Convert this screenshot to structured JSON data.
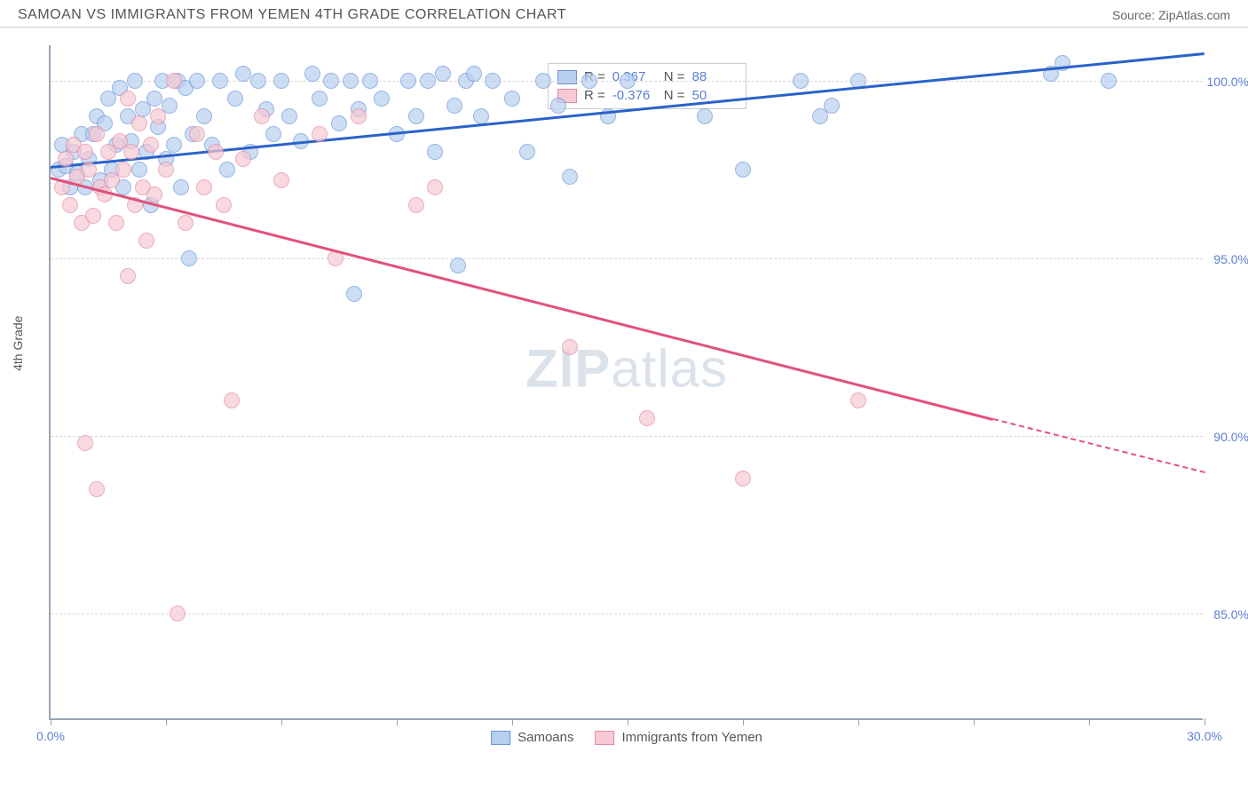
{
  "header": {
    "title": "SAMOAN VS IMMIGRANTS FROM YEMEN 4TH GRADE CORRELATION CHART",
    "source": "Source: ZipAtlas.com"
  },
  "chart": {
    "type": "scatter",
    "y_axis_title": "4th Grade",
    "xlim": [
      0,
      30
    ],
    "ylim": [
      82,
      101
    ],
    "x_ticks": [
      0,
      3,
      6,
      9,
      12,
      15,
      18,
      21,
      24,
      27,
      30
    ],
    "x_tick_labels": {
      "0": "0.0%",
      "30": "30.0%"
    },
    "y_gridlines": [
      85,
      90,
      95,
      100
    ],
    "y_labels": {
      "85": "85.0%",
      "90": "90.0%",
      "95": "95.0%",
      "100": "100.0%"
    },
    "background_color": "#ffffff",
    "grid_color": "#d8d8d8",
    "axis_color": "#9aa5b1",
    "label_color": "#5b7fd1",
    "marker_radius": 9,
    "marker_opacity": 0.7,
    "series": [
      {
        "name": "Samoans",
        "fill": "#b7cff0",
        "stroke": "#6c96d6",
        "line_color": "#2a62c9",
        "R": "0.367",
        "N": "88",
        "trend": {
          "x1": 0,
          "y1": 97.6,
          "x2": 30,
          "y2": 100.8
        },
        "points": [
          [
            0.2,
            97.5
          ],
          [
            0.3,
            98.2
          ],
          [
            0.4,
            97.6
          ],
          [
            0.5,
            97.0
          ],
          [
            0.6,
            98.0
          ],
          [
            0.7,
            97.4
          ],
          [
            0.8,
            98.5
          ],
          [
            0.9,
            97.0
          ],
          [
            1.0,
            97.8
          ],
          [
            1.1,
            98.5
          ],
          [
            1.2,
            99.0
          ],
          [
            1.3,
            97.2
          ],
          [
            1.4,
            98.8
          ],
          [
            1.5,
            99.5
          ],
          [
            1.6,
            97.5
          ],
          [
            1.7,
            98.2
          ],
          [
            1.8,
            99.8
          ],
          [
            1.9,
            97.0
          ],
          [
            2.0,
            99.0
          ],
          [
            2.1,
            98.3
          ],
          [
            2.2,
            100.0
          ],
          [
            2.3,
            97.5
          ],
          [
            2.4,
            99.2
          ],
          [
            2.5,
            98.0
          ],
          [
            2.6,
            96.5
          ],
          [
            2.7,
            99.5
          ],
          [
            2.8,
            98.7
          ],
          [
            2.9,
            100.0
          ],
          [
            3.0,
            97.8
          ],
          [
            3.1,
            99.3
          ],
          [
            3.2,
            98.2
          ],
          [
            3.3,
            100.0
          ],
          [
            3.4,
            97.0
          ],
          [
            3.5,
            99.8
          ],
          [
            3.6,
            95.0
          ],
          [
            3.7,
            98.5
          ],
          [
            3.8,
            100.0
          ],
          [
            4.0,
            99.0
          ],
          [
            4.2,
            98.2
          ],
          [
            4.4,
            100.0
          ],
          [
            4.6,
            97.5
          ],
          [
            4.8,
            99.5
          ],
          [
            5.0,
            100.2
          ],
          [
            5.2,
            98.0
          ],
          [
            5.4,
            100.0
          ],
          [
            5.6,
            99.2
          ],
          [
            5.8,
            98.5
          ],
          [
            6.0,
            100.0
          ],
          [
            6.2,
            99.0
          ],
          [
            6.5,
            98.3
          ],
          [
            6.8,
            100.2
          ],
          [
            7.0,
            99.5
          ],
          [
            7.3,
            100.0
          ],
          [
            7.5,
            98.8
          ],
          [
            7.8,
            100.0
          ],
          [
            7.9,
            94.0
          ],
          [
            8.0,
            99.2
          ],
          [
            8.3,
            100.0
          ],
          [
            8.6,
            99.5
          ],
          [
            9.0,
            98.5
          ],
          [
            9.3,
            100.0
          ],
          [
            9.5,
            99.0
          ],
          [
            9.8,
            100.0
          ],
          [
            10.0,
            98.0
          ],
          [
            10.2,
            100.2
          ],
          [
            10.5,
            99.3
          ],
          [
            10.6,
            94.8
          ],
          [
            10.8,
            100.0
          ],
          [
            11.0,
            100.2
          ],
          [
            11.2,
            99.0
          ],
          [
            11.5,
            100.0
          ],
          [
            12.0,
            99.5
          ],
          [
            12.4,
            98.0
          ],
          [
            12.8,
            100.0
          ],
          [
            13.2,
            99.3
          ],
          [
            13.5,
            97.3
          ],
          [
            14.0,
            100.0
          ],
          [
            14.5,
            99.0
          ],
          [
            15.0,
            100.0
          ],
          [
            17.0,
            99.0
          ],
          [
            18.0,
            97.5
          ],
          [
            19.5,
            100.0
          ],
          [
            20.0,
            99.0
          ],
          [
            20.3,
            99.3
          ],
          [
            21.0,
            100.0
          ],
          [
            26.0,
            100.2
          ],
          [
            26.3,
            100.5
          ],
          [
            27.5,
            100.0
          ]
        ]
      },
      {
        "name": "Immigrants from Yemen",
        "fill": "#f6c9d3",
        "stroke": "#e48aa3",
        "line_color": "#e0527a",
        "R": "-0.376",
        "N": "50",
        "trend": {
          "x1": 0,
          "y1": 97.3,
          "x2": 24.5,
          "y2": 90.5
        },
        "trend_dash": {
          "x1": 24.5,
          "y1": 90.5,
          "x2": 30,
          "y2": 89.0
        },
        "points": [
          [
            0.3,
            97.0
          ],
          [
            0.4,
            97.8
          ],
          [
            0.5,
            96.5
          ],
          [
            0.6,
            98.2
          ],
          [
            0.7,
            97.3
          ],
          [
            0.8,
            96.0
          ],
          [
            0.9,
            98.0
          ],
          [
            1.0,
            97.5
          ],
          [
            1.1,
            96.2
          ],
          [
            1.2,
            98.5
          ],
          [
            1.3,
            97.0
          ],
          [
            1.4,
            96.8
          ],
          [
            1.5,
            98.0
          ],
          [
            1.6,
            97.2
          ],
          [
            1.7,
            96.0
          ],
          [
            1.8,
            98.3
          ],
          [
            1.9,
            97.5
          ],
          [
            2.0,
            99.5
          ],
          [
            2.1,
            98.0
          ],
          [
            2.2,
            96.5
          ],
          [
            2.3,
            98.8
          ],
          [
            2.4,
            97.0
          ],
          [
            2.5,
            95.5
          ],
          [
            2.6,
            98.2
          ],
          [
            2.7,
            96.8
          ],
          [
            2.8,
            99.0
          ],
          [
            3.0,
            97.5
          ],
          [
            3.2,
            100.0
          ],
          [
            3.5,
            96.0
          ],
          [
            3.8,
            98.5
          ],
          [
            4.0,
            97.0
          ],
          [
            4.3,
            98.0
          ],
          [
            4.5,
            96.5
          ],
          [
            5.0,
            97.8
          ],
          [
            5.5,
            99.0
          ],
          [
            6.0,
            97.2
          ],
          [
            7.0,
            98.5
          ],
          [
            7.4,
            95.0
          ],
          [
            8.0,
            99.0
          ],
          [
            9.5,
            96.5
          ],
          [
            10.0,
            97.0
          ],
          [
            4.7,
            91.0
          ],
          [
            0.9,
            89.8
          ],
          [
            2.0,
            94.5
          ],
          [
            1.2,
            88.5
          ],
          [
            3.3,
            85.0
          ],
          [
            13.5,
            92.5
          ],
          [
            15.5,
            90.5
          ],
          [
            18.0,
            88.8
          ],
          [
            21.0,
            91.0
          ]
        ]
      }
    ],
    "bottom_legend": [
      {
        "swatch_fill": "#b7cff0",
        "swatch_stroke": "#6c96d6",
        "label": "Samoans"
      },
      {
        "swatch_fill": "#f6c9d3",
        "swatch_stroke": "#e48aa3",
        "label": "Immigrants from Yemen"
      }
    ],
    "watermark": {
      "zip": "ZIP",
      "atlas": "atlas"
    }
  }
}
